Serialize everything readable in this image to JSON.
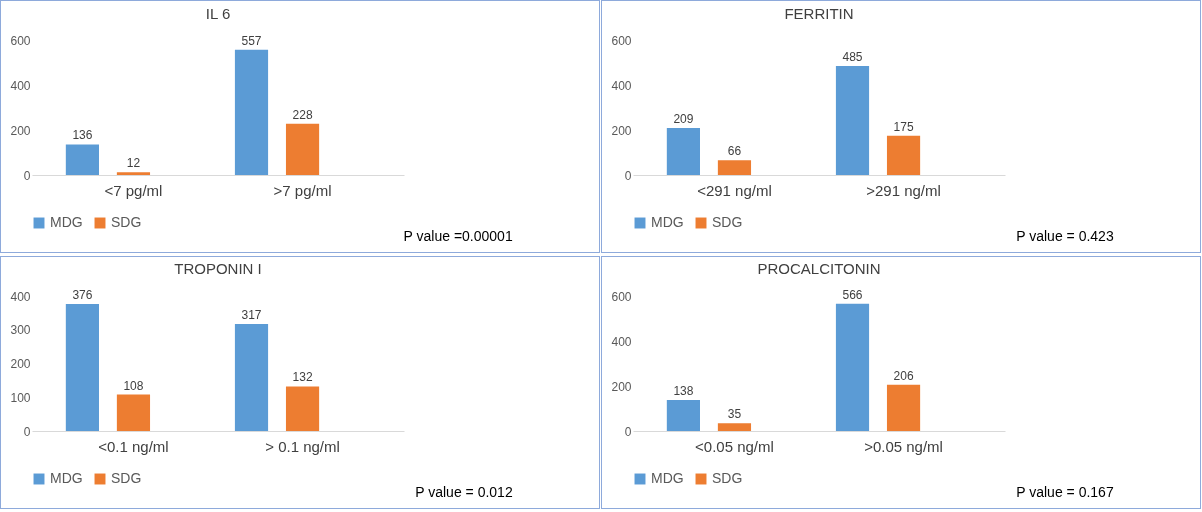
{
  "chart_data": [
    {
      "type": "bar",
      "title": "IL 6",
      "categories": [
        "<7 pg/ml",
        ">7 pg/ml"
      ],
      "series": [
        {
          "name": "MDG",
          "color": "#5b9bd5",
          "values": [
            136,
            557
          ]
        },
        {
          "name": "SDG",
          "color": "#ed7d31",
          "values": [
            12,
            228
          ]
        }
      ],
      "ylim": [
        0,
        600
      ],
      "yticks": [
        0,
        200,
        400,
        600
      ],
      "data_labels": true,
      "legend": "bottom",
      "annotations": [
        "P value  =0.00001"
      ]
    },
    {
      "type": "bar",
      "title": "FERRITIN",
      "categories": [
        "<291 ng/ml",
        ">291 ng/ml"
      ],
      "series": [
        {
          "name": "MDG",
          "color": "#5b9bd5",
          "values": [
            209,
            485
          ]
        },
        {
          "name": "SDG",
          "color": "#ed7d31",
          "values": [
            66,
            175
          ]
        }
      ],
      "ylim": [
        0,
        600
      ],
      "yticks": [
        0,
        200,
        400,
        600
      ],
      "data_labels": true,
      "legend": "bottom",
      "annotations": [
        "P value  = 0.423"
      ]
    },
    {
      "type": "bar",
      "title": "TROPONIN I",
      "categories": [
        "<0.1 ng/ml",
        "> 0.1 ng/ml"
      ],
      "series": [
        {
          "name": "MDG",
          "color": "#5b9bd5",
          "values": [
            376,
            317
          ]
        },
        {
          "name": "SDG",
          "color": "#ed7d31",
          "values": [
            108,
            132
          ]
        }
      ],
      "ylim": [
        0,
        400
      ],
      "yticks": [
        0,
        100,
        200,
        300,
        400
      ],
      "data_labels": true,
      "legend": "bottom",
      "annotations": [
        "P value  = 0.012"
      ]
    },
    {
      "type": "bar",
      "title": "PROCALCITONIN",
      "categories": [
        "<0.05 ng/ml",
        ">0.05 ng/ml"
      ],
      "series": [
        {
          "name": "MDG",
          "color": "#5b9bd5",
          "values": [
            138,
            566
          ]
        },
        {
          "name": "SDG",
          "color": "#ed7d31",
          "values": [
            35,
            206
          ]
        }
      ],
      "ylim": [
        0,
        600
      ],
      "yticks": [
        0,
        200,
        400,
        600
      ],
      "data_labels": true,
      "legend": "bottom",
      "annotations": [
        "P value  = 0.167"
      ]
    }
  ]
}
